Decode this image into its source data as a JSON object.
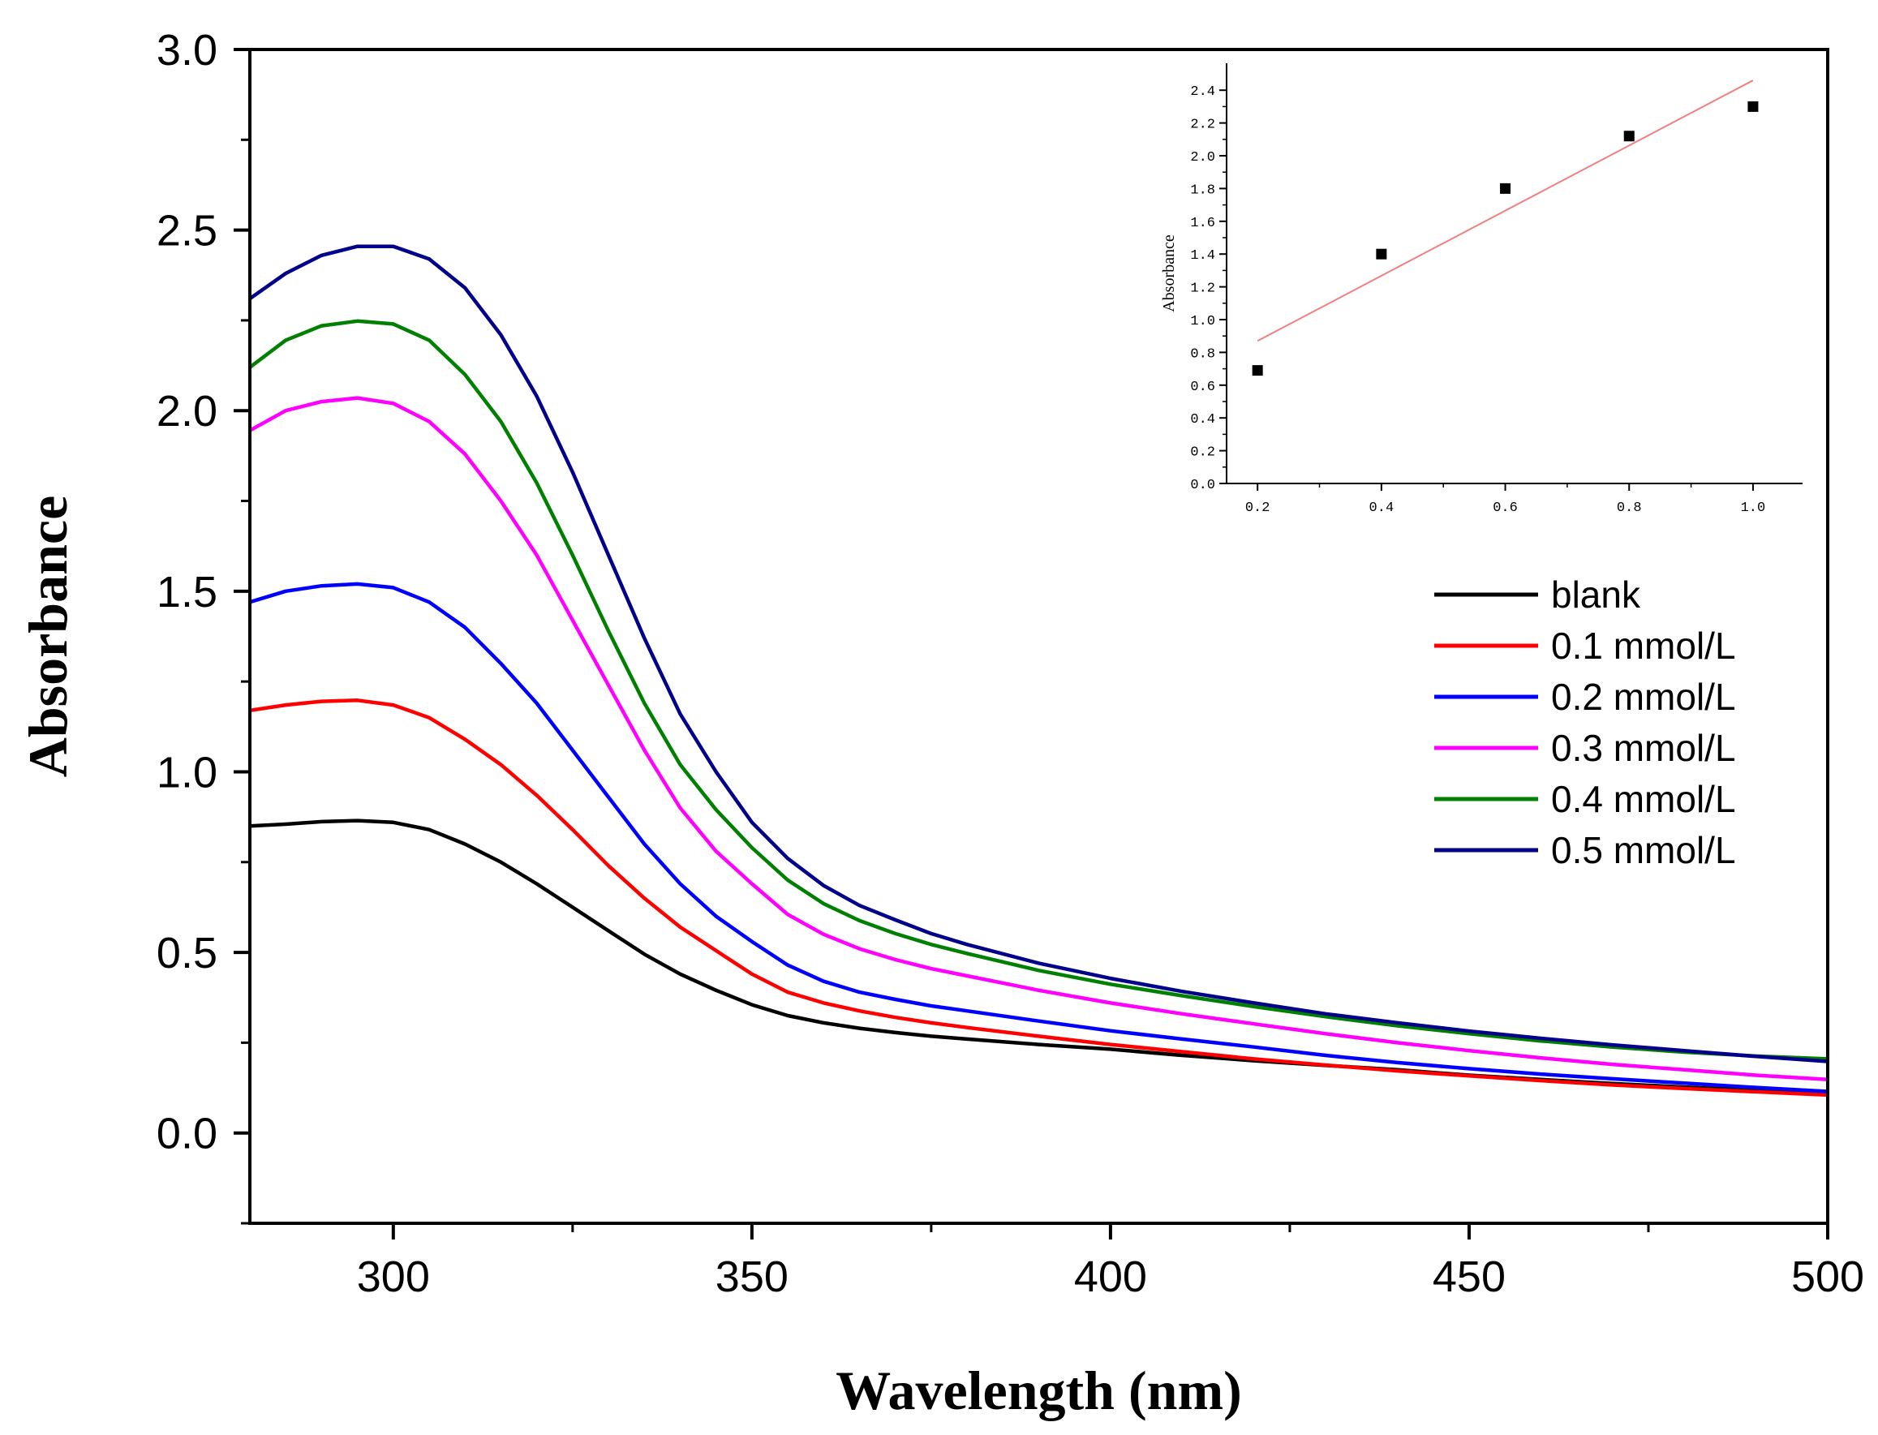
{
  "chart_data": [
    {
      "type": "line",
      "xlabel": "Wavelength (nm)",
      "ylabel": "Absorbance",
      "xlim": [
        280,
        500
      ],
      "ylim": [
        -0.25,
        3.0
      ],
      "xticks": [
        300,
        350,
        400,
        450,
        500
      ],
      "yticks": [
        0.0,
        0.5,
        1.0,
        1.5,
        2.0,
        2.5,
        3.0
      ],
      "x_tick_labels": [
        "300",
        "350",
        "400",
        "450",
        "500"
      ],
      "y_tick_labels": [
        "0.0",
        "0.5",
        "1.0",
        "1.5",
        "2.0",
        "2.5",
        "3.0"
      ],
      "grid": false,
      "legend_position": "right",
      "x": [
        280,
        285,
        290,
        295,
        300,
        305,
        310,
        315,
        320,
        325,
        330,
        335,
        340,
        345,
        350,
        355,
        360,
        365,
        370,
        375,
        380,
        390,
        400,
        410,
        420,
        430,
        440,
        450,
        460,
        470,
        480,
        490,
        500
      ],
      "series": [
        {
          "name": "blank",
          "color": "#000000",
          "values": [
            0.85,
            0.855,
            0.862,
            0.865,
            0.86,
            0.84,
            0.8,
            0.75,
            0.69,
            0.625,
            0.56,
            0.495,
            0.44,
            0.395,
            0.355,
            0.325,
            0.305,
            0.29,
            0.278,
            0.268,
            0.26,
            0.245,
            0.232,
            0.215,
            0.2,
            0.187,
            0.175,
            0.16,
            0.148,
            0.137,
            0.127,
            0.118,
            0.11
          ]
        },
        {
          "name": "0.1 mmol/L",
          "color": "#ff0000",
          "values": [
            1.17,
            1.185,
            1.195,
            1.198,
            1.185,
            1.15,
            1.09,
            1.02,
            0.935,
            0.84,
            0.74,
            0.65,
            0.57,
            0.505,
            0.44,
            0.39,
            0.36,
            0.338,
            0.32,
            0.305,
            0.292,
            0.268,
            0.245,
            0.225,
            0.205,
            0.188,
            0.172,
            0.158,
            0.145,
            0.133,
            0.123,
            0.114,
            0.105
          ]
        },
        {
          "name": "0.2 mmol/L",
          "color": "#0000ff",
          "values": [
            1.47,
            1.5,
            1.515,
            1.52,
            1.51,
            1.47,
            1.4,
            1.3,
            1.19,
            1.06,
            0.93,
            0.8,
            0.69,
            0.6,
            0.53,
            0.465,
            0.42,
            0.39,
            0.37,
            0.352,
            0.338,
            0.31,
            0.283,
            0.26,
            0.238,
            0.215,
            0.195,
            0.178,
            0.163,
            0.15,
            0.138,
            0.126,
            0.115
          ]
        },
        {
          "name": "0.3 mmol/L",
          "color": "#ff00ff",
          "values": [
            1.945,
            2.0,
            2.025,
            2.035,
            2.02,
            1.97,
            1.88,
            1.75,
            1.6,
            1.42,
            1.24,
            1.06,
            0.9,
            0.78,
            0.69,
            0.605,
            0.55,
            0.51,
            0.48,
            0.455,
            0.435,
            0.395,
            0.36,
            0.33,
            0.302,
            0.275,
            0.25,
            0.228,
            0.208,
            0.19,
            0.175,
            0.16,
            0.148
          ]
        },
        {
          "name": "0.4 mmol/L",
          "color": "#008000",
          "values": [
            2.12,
            2.195,
            2.235,
            2.248,
            2.24,
            2.195,
            2.1,
            1.97,
            1.8,
            1.6,
            1.39,
            1.19,
            1.02,
            0.895,
            0.79,
            0.7,
            0.635,
            0.588,
            0.552,
            0.522,
            0.497,
            0.45,
            0.412,
            0.38,
            0.35,
            0.322,
            0.297,
            0.275,
            0.255,
            0.238,
            0.224,
            0.213,
            0.205
          ]
        },
        {
          "name": "0.5 mmol/L",
          "color": "#00008b",
          "values": [
            2.31,
            2.38,
            2.43,
            2.455,
            2.455,
            2.42,
            2.34,
            2.21,
            2.04,
            1.83,
            1.6,
            1.37,
            1.16,
            1.0,
            0.86,
            0.76,
            0.685,
            0.63,
            0.59,
            0.552,
            0.522,
            0.47,
            0.428,
            0.392,
            0.36,
            0.33,
            0.305,
            0.282,
            0.262,
            0.244,
            0.228,
            0.212,
            0.198
          ]
        }
      ]
    },
    {
      "type": "scatter",
      "title": "",
      "xlabel": "",
      "ylabel": "Absorbance",
      "xlim": [
        0.15,
        1.08
      ],
      "ylim": [
        0.0,
        2.5
      ],
      "xticks": [
        0.2,
        0.4,
        0.6,
        0.8,
        1.0
      ],
      "yticks": [
        0.0,
        0.2,
        0.4,
        0.6,
        0.8,
        1.0,
        1.2,
        1.4,
        1.6,
        1.8,
        2.0,
        2.2,
        2.4
      ],
      "x_tick_labels": [
        "0.2",
        "0.4",
        "0.6",
        "0.8",
        "1.0"
      ],
      "y_tick_labels": [
        "0.0",
        "0.2",
        "0.4",
        "0.6",
        "0.8",
        "1.0",
        "1.2",
        "1.4",
        "1.6",
        "1.8",
        "2.0",
        "2.2",
        "2.4"
      ],
      "points": {
        "x": [
          0.2,
          0.4,
          0.6,
          0.8,
          1.0
        ],
        "y": [
          0.69,
          1.4,
          1.8,
          2.12,
          2.3
        ],
        "color": "#000000"
      },
      "fit_line": {
        "x": [
          0.2,
          1.0
        ],
        "y": [
          0.87,
          2.46
        ],
        "color": "#f08080"
      }
    }
  ]
}
